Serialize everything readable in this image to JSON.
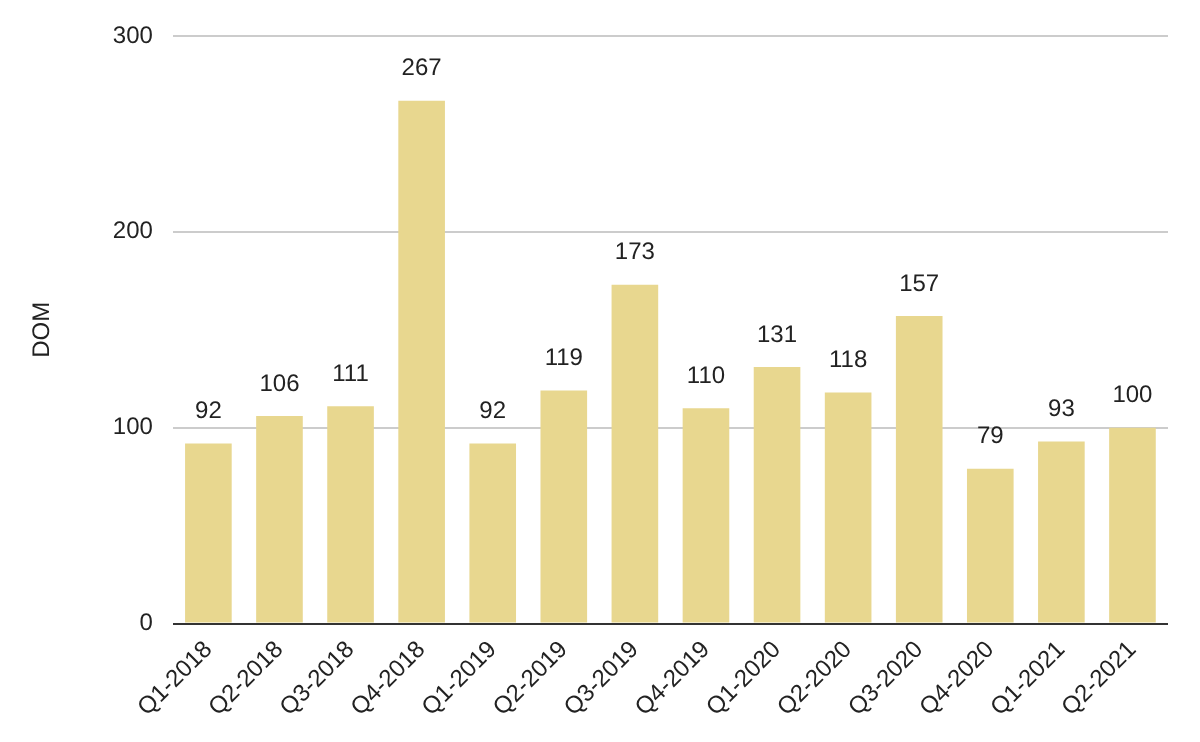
{
  "chart_data": {
    "type": "bar",
    "ylabel": "DOM",
    "categories": [
      "Q1-2018",
      "Q2-2018",
      "Q3-2018",
      "Q4-2018",
      "Q1-2019",
      "Q2-2019",
      "Q3-2019",
      "Q4-2019",
      "Q1-2020",
      "Q2-2020",
      "Q3-2020",
      "Q4-2020",
      "Q1-2021",
      "Q2-2021"
    ],
    "values": [
      92,
      106,
      111,
      267,
      92,
      119,
      173,
      110,
      131,
      118,
      157,
      79,
      93,
      100
    ],
    "color": "#e8d78f",
    "ylim": [
      0,
      300
    ],
    "yticks": [
      0,
      100,
      200,
      300
    ],
    "grid": "y",
    "data_labels": true,
    "legend": false
  }
}
